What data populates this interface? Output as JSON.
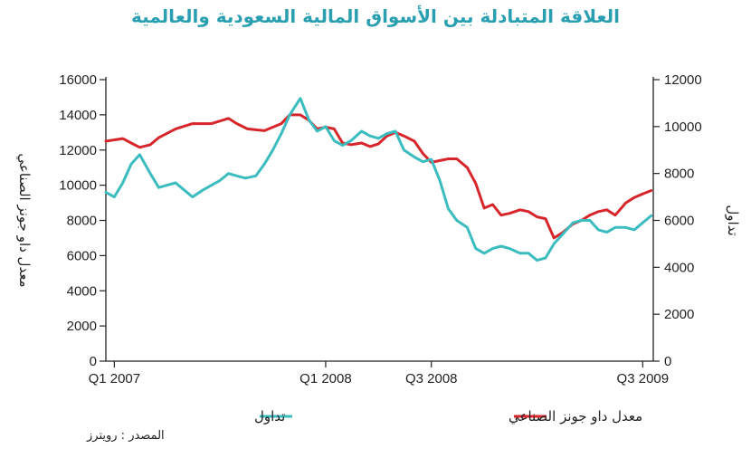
{
  "page": {
    "title": "العلاقة المتبادلة بين الأسواق المالية السعودية والعالمية",
    "source": "المصدر : رويترز"
  },
  "colors": {
    "dow": "#d7262b",
    "tadawul": "#3bbcbf",
    "axis": "#222222"
  },
  "chart_data": {
    "type": "line",
    "title": "العلاقة المتبادلة بين الأسواق المالية السعودية والعالمية",
    "ylabel_left": "معدل داو جونز الصناعي",
    "ylabel_right": "تداول",
    "x_tick_labels": [
      "Q1 2007",
      "Q1 2008",
      "Q3 2008",
      "Q3 2009"
    ],
    "x_tick_positions": [
      2007.0,
      2008.0,
      2008.5,
      2009.5
    ],
    "xlim": [
      2006.96,
      2009.55
    ],
    "ylim_left": [
      0,
      16000
    ],
    "ylim_right": [
      0,
      12000
    ],
    "yticks_left": [
      "0",
      "2000",
      "4000",
      "6000",
      "8000",
      "10000",
      "12000",
      "14000",
      "16000"
    ],
    "yticks_right": [
      "0",
      "2000",
      "4000",
      "6000",
      "8000",
      "10000",
      "12000"
    ],
    "grid": false,
    "legend_position": "bottom",
    "series": [
      {
        "name": "معدل داو جونز الصناعي",
        "axis": "left",
        "x": [
          2006.96,
          2007.04,
          2007.08,
          2007.12,
          2007.17,
          2007.21,
          2007.29,
          2007.37,
          2007.46,
          2007.54,
          2007.58,
          2007.63,
          2007.71,
          2007.79,
          2007.83,
          2007.88,
          2007.92,
          2007.96,
          2008.0,
          2008.04,
          2008.08,
          2008.12,
          2008.17,
          2008.21,
          2008.25,
          2008.29,
          2008.33,
          2008.37,
          2008.42,
          2008.46,
          2008.5,
          2008.54,
          2008.58,
          2008.62,
          2008.67,
          2008.71,
          2008.75,
          2008.79,
          2008.83,
          2008.87,
          2008.92,
          2008.96,
          2009.0,
          2009.04,
          2009.08,
          2009.12,
          2009.17,
          2009.21,
          2009.25,
          2009.29,
          2009.33,
          2009.37,
          2009.42,
          2009.46,
          2009.5,
          2009.54
        ],
        "y": [
          12500,
          12650,
          12400,
          12150,
          12300,
          12700,
          13200,
          13500,
          13500,
          13800,
          13500,
          13200,
          13100,
          13500,
          14000,
          14000,
          13700,
          13200,
          13300,
          13200,
          12400,
          12300,
          12400,
          12200,
          12350,
          12800,
          13000,
          12800,
          12500,
          11800,
          11300,
          11400,
          11500,
          11500,
          11000,
          10100,
          8700,
          8900,
          8300,
          8400,
          8600,
          8500,
          8200,
          8100,
          7000,
          7300,
          7800,
          8000,
          8300,
          8500,
          8600,
          8300,
          9000,
          9300,
          9500,
          9700
        ]
      },
      {
        "name": "تداول",
        "axis": "right",
        "x": [
          2006.96,
          2007.0,
          2007.04,
          2007.08,
          2007.12,
          2007.17,
          2007.21,
          2007.25,
          2007.29,
          2007.33,
          2007.37,
          2007.42,
          2007.46,
          2007.5,
          2007.54,
          2007.58,
          2007.62,
          2007.67,
          2007.71,
          2007.75,
          2007.79,
          2007.83,
          2007.88,
          2007.92,
          2007.96,
          2008.0,
          2008.04,
          2008.08,
          2008.12,
          2008.17,
          2008.21,
          2008.25,
          2008.29,
          2008.33,
          2008.37,
          2008.42,
          2008.46,
          2008.5,
          2008.54,
          2008.58,
          2008.62,
          2008.67,
          2008.71,
          2008.75,
          2008.79,
          2008.83,
          2008.87,
          2008.92,
          2008.96,
          2009.0,
          2009.04,
          2009.08,
          2009.12,
          2009.17,
          2009.21,
          2009.25,
          2009.29,
          2009.33,
          2009.37,
          2009.42,
          2009.46,
          2009.5,
          2009.54
        ],
        "y": [
          7200,
          7000,
          7600,
          8400,
          8800,
          8000,
          7400,
          7500,
          7600,
          7300,
          7000,
          7300,
          7500,
          7700,
          8000,
          7900,
          7800,
          7900,
          8400,
          9000,
          9700,
          10500,
          11200,
          10300,
          9800,
          10000,
          9400,
          9200,
          9400,
          9800,
          9600,
          9500,
          9700,
          9800,
          9000,
          8700,
          8500,
          8600,
          7700,
          6500,
          6000,
          5700,
          4800,
          4600,
          4800,
          4900,
          4800,
          4600,
          4600,
          4300,
          4400,
          5000,
          5400,
          5900,
          6000,
          6000,
          5600,
          5500,
          5700,
          5700,
          5600,
          5900,
          6200
        ]
      }
    ]
  }
}
